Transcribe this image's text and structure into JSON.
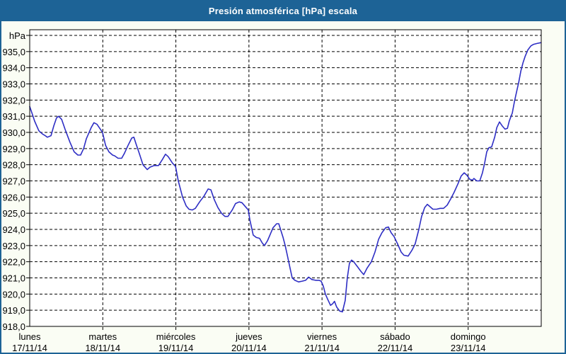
{
  "window": {
    "title": "Presión atmosférica [hPa] escala"
  },
  "colors": {
    "titlebar_bg": "#1d6396",
    "outer_border": "#1d6396",
    "page_bg": "#fafdf4",
    "plot_bg": "#ffffff",
    "grid": "#000000",
    "axis": "#000000",
    "line": "#2e2ec4",
    "label_text": "#000000",
    "title_text": "#ffffff"
  },
  "chart_data": {
    "type": "line",
    "title": "Presión atmosférica [hPa] escala",
    "grid": "dashed",
    "legend": "none",
    "y_axis": {
      "unit_label": "hPa",
      "ylim": [
        918,
        936
      ],
      "tick_values": [
        935,
        934,
        933,
        932,
        931,
        930,
        929,
        928,
        927,
        926,
        925,
        924,
        923,
        922,
        921,
        920,
        919,
        918
      ],
      "tick_labels": [
        "935,0",
        "934,0",
        "933,0",
        "932,0",
        "931,0",
        "930,0",
        "929,0",
        "928,0",
        "927,0",
        "926,0",
        "925,0",
        "924,0",
        "923,0",
        "922,0",
        "921,0",
        "920,0",
        "919,0",
        "918,0"
      ]
    },
    "x_axis": {
      "xlim_hours": [
        0,
        168
      ],
      "day_tick_hours": [
        0,
        24,
        48,
        72,
        96,
        120,
        144
      ],
      "days": [
        {
          "name": "lunes",
          "date": "17/11/14"
        },
        {
          "name": "martes",
          "date": "18/11/14"
        },
        {
          "name": "miércoles",
          "date": "19/11/14"
        },
        {
          "name": "jueves",
          "date": "20/11/14"
        },
        {
          "name": "viernes",
          "date": "21/11/14"
        },
        {
          "name": "sábado",
          "date": "22/11/14"
        },
        {
          "name": "domingo",
          "date": "23/11/14"
        }
      ]
    },
    "series": [
      {
        "name": "Presión atmosférica [hPa]",
        "points": [
          [
            0,
            931.6
          ],
          [
            0.9,
            931.1
          ],
          [
            1.6,
            930.7
          ],
          [
            3,
            930.1
          ],
          [
            4.2,
            929.9
          ],
          [
            5.1,
            929.8
          ],
          [
            5.8,
            929.7
          ],
          [
            7,
            929.8
          ],
          [
            7.9,
            930.4
          ],
          [
            8.8,
            930.9
          ],
          [
            9.5,
            931.0
          ],
          [
            10.5,
            930.8
          ],
          [
            11.6,
            930.2
          ],
          [
            13.2,
            929.4
          ],
          [
            14.6,
            928.8
          ],
          [
            15.8,
            928.6
          ],
          [
            16.7,
            928.6
          ],
          [
            17.7,
            929.0
          ],
          [
            18.6,
            929.6
          ],
          [
            20.2,
            930.3
          ],
          [
            21.1,
            930.6
          ],
          [
            22.1,
            930.5
          ],
          [
            23.2,
            930.2
          ],
          [
            23.9,
            930.0
          ],
          [
            24.9,
            929.2
          ],
          [
            26,
            928.8
          ],
          [
            27.2,
            928.6
          ],
          [
            27.9,
            928.55
          ],
          [
            29,
            928.4
          ],
          [
            30.2,
            928.4
          ],
          [
            31.1,
            928.7
          ],
          [
            32.3,
            929.2
          ],
          [
            33.5,
            929.65
          ],
          [
            34.2,
            929.7
          ],
          [
            34.9,
            929.3
          ],
          [
            36,
            928.7
          ],
          [
            37.2,
            928.0
          ],
          [
            38.6,
            927.7
          ],
          [
            39.5,
            927.85
          ],
          [
            40.9,
            927.95
          ],
          [
            42.3,
            927.95
          ],
          [
            43.5,
            928.3
          ],
          [
            44.6,
            928.65
          ],
          [
            45.5,
            928.5
          ],
          [
            46.9,
            928.1
          ],
          [
            47.9,
            927.9
          ],
          [
            48.8,
            927.0
          ],
          [
            50.2,
            926.0
          ],
          [
            51.4,
            925.45
          ],
          [
            52.3,
            925.25
          ],
          [
            53.4,
            925.2
          ],
          [
            54.4,
            925.3
          ],
          [
            55.8,
            925.7
          ],
          [
            57.2,
            926.05
          ],
          [
            58.6,
            926.5
          ],
          [
            59.5,
            926.45
          ],
          [
            60.6,
            925.85
          ],
          [
            61.8,
            925.35
          ],
          [
            63,
            925.0
          ],
          [
            64.1,
            924.8
          ],
          [
            65.1,
            924.8
          ],
          [
            66.5,
            925.2
          ],
          [
            67.6,
            925.6
          ],
          [
            68.8,
            925.7
          ],
          [
            69.7,
            925.65
          ],
          [
            71.1,
            925.35
          ],
          [
            71.8,
            925.2
          ],
          [
            72.3,
            924.6
          ],
          [
            73.4,
            923.65
          ],
          [
            74.4,
            923.5
          ],
          [
            75.5,
            923.45
          ],
          [
            76.4,
            923.15
          ],
          [
            77.1,
            923.0
          ],
          [
            78.1,
            923.3
          ],
          [
            78.8,
            923.6
          ],
          [
            79.9,
            924.1
          ],
          [
            81.1,
            924.35
          ],
          [
            81.8,
            924.35
          ],
          [
            83.2,
            923.5
          ],
          [
            83.9,
            923.0
          ],
          [
            84.6,
            922.4
          ],
          [
            85.5,
            921.6
          ],
          [
            86.2,
            921.0
          ],
          [
            87.1,
            920.85
          ],
          [
            88.3,
            920.75
          ],
          [
            89.5,
            920.8
          ],
          [
            90.6,
            920.85
          ],
          [
            91.6,
            921.05
          ],
          [
            92.7,
            920.9
          ],
          [
            93.9,
            920.85
          ],
          [
            95,
            920.85
          ],
          [
            95.7,
            920.8
          ],
          [
            96.4,
            920.5
          ],
          [
            97.1,
            920.0
          ],
          [
            97.8,
            919.7
          ],
          [
            98.8,
            919.3
          ],
          [
            99.5,
            919.4
          ],
          [
            100.1,
            919.55
          ],
          [
            100.8,
            919.2
          ],
          [
            101.8,
            918.95
          ],
          [
            102.7,
            918.9
          ],
          [
            103.6,
            919.6
          ],
          [
            104.3,
            921.0
          ],
          [
            105,
            921.9
          ],
          [
            105.7,
            922.1
          ],
          [
            106.4,
            922.0
          ],
          [
            107.6,
            921.7
          ],
          [
            108.8,
            921.4
          ],
          [
            109.7,
            921.2
          ],
          [
            110.8,
            921.6
          ],
          [
            112.2,
            922.0
          ],
          [
            113.4,
            922.6
          ],
          [
            114.6,
            923.4
          ],
          [
            115.7,
            923.8
          ],
          [
            116.9,
            924.1
          ],
          [
            117.8,
            924.15
          ],
          [
            118.7,
            923.8
          ],
          [
            119.7,
            923.55
          ],
          [
            120.8,
            923.1
          ],
          [
            122,
            922.6
          ],
          [
            122.9,
            922.4
          ],
          [
            124.3,
            922.35
          ],
          [
            125.5,
            922.7
          ],
          [
            126.6,
            923.1
          ],
          [
            127.8,
            924.0
          ],
          [
            128.7,
            924.8
          ],
          [
            129.7,
            925.35
          ],
          [
            130.6,
            925.55
          ],
          [
            131.5,
            925.4
          ],
          [
            132.4,
            925.25
          ],
          [
            133.6,
            925.25
          ],
          [
            134.8,
            925.3
          ],
          [
            135.9,
            925.3
          ],
          [
            137.1,
            925.5
          ],
          [
            138.3,
            925.9
          ],
          [
            139.4,
            926.3
          ],
          [
            140.6,
            926.8
          ],
          [
            141.7,
            927.3
          ],
          [
            142.7,
            927.5
          ],
          [
            143.6,
            927.35
          ],
          [
            144.5,
            927.1
          ],
          [
            145.4,
            927.05
          ],
          [
            145.9,
            927.15
          ],
          [
            146.8,
            927.0
          ],
          [
            147.8,
            927.0
          ],
          [
            148.7,
            927.5
          ],
          [
            149.4,
            928.1
          ],
          [
            150.1,
            928.8
          ],
          [
            150.8,
            929.05
          ],
          [
            151.7,
            929.1
          ],
          [
            152.7,
            929.7
          ],
          [
            153.4,
            930.3
          ],
          [
            154.3,
            930.65
          ],
          [
            155.2,
            930.4
          ],
          [
            156.1,
            930.2
          ],
          [
            156.9,
            930.25
          ],
          [
            157.5,
            930.7
          ],
          [
            158.5,
            931.2
          ],
          [
            159.2,
            931.9
          ],
          [
            159.9,
            932.5
          ],
          [
            160.6,
            933.1
          ],
          [
            161.3,
            933.8
          ],
          [
            162,
            934.3
          ],
          [
            162.7,
            934.7
          ],
          [
            163.6,
            935.1
          ],
          [
            164.6,
            935.35
          ],
          [
            165.5,
            935.45
          ],
          [
            166.6,
            935.5
          ],
          [
            167.8,
            935.55
          ]
        ]
      }
    ]
  }
}
